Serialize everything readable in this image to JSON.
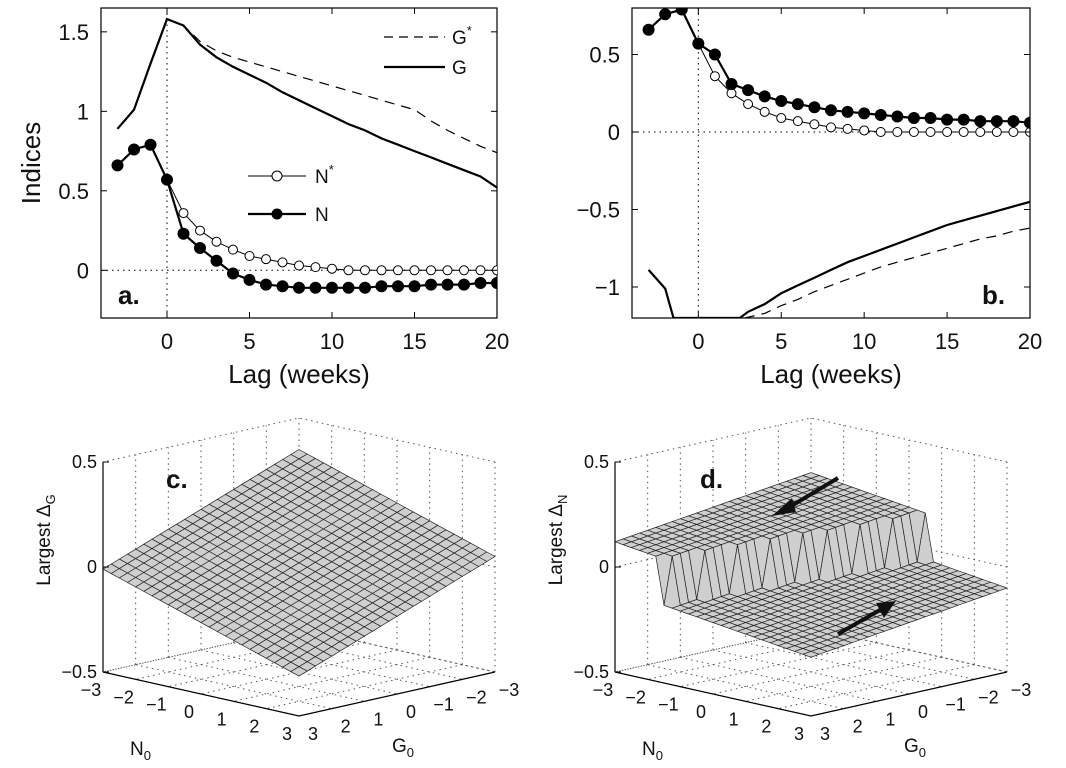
{
  "chart_data": [
    {
      "type": "line",
      "panel_label": "a.",
      "xlabel": "Lag (weeks)",
      "ylabel": "Indices",
      "xlim": [
        -4,
        20
      ],
      "ylim": [
        -0.3,
        1.65
      ],
      "x_ticks": [
        0,
        5,
        10,
        15,
        20
      ],
      "y_ticks": [
        0,
        0.5,
        1,
        1.5
      ],
      "y_tick_labels": [
        "0",
        "0.5",
        "1",
        "1.5"
      ],
      "reference_lines": {
        "x": 0,
        "y": 0,
        "style": "dotted"
      },
      "legend_g": {
        "placement": "top-right",
        "entries": [
          "G*",
          "G"
        ]
      },
      "legend_n": {
        "placement": "center",
        "entries": [
          "N*",
          "N"
        ]
      },
      "series": [
        {
          "name": "G*",
          "style": "dashed",
          "x": [
            -3,
            -2,
            -1,
            0,
            1,
            2,
            3,
            4,
            5,
            6,
            7,
            8,
            9,
            10,
            11,
            12,
            13,
            14,
            15,
            16,
            17,
            18,
            19,
            20
          ],
          "values": [
            0.89,
            1.01,
            1.3,
            1.58,
            1.54,
            1.44,
            1.38,
            1.34,
            1.31,
            1.28,
            1.25,
            1.22,
            1.19,
            1.16,
            1.13,
            1.1,
            1.07,
            1.04,
            1.01,
            0.94,
            0.88,
            0.83,
            0.78,
            0.74
          ]
        },
        {
          "name": "G",
          "style": "solid",
          "x": [
            -3,
            -2,
            -1,
            0,
            1,
            2,
            3,
            4,
            5,
            6,
            7,
            8,
            9,
            10,
            11,
            12,
            13,
            14,
            15,
            16,
            17,
            18,
            19,
            20
          ],
          "values": [
            0.89,
            1.01,
            1.3,
            1.58,
            1.54,
            1.42,
            1.34,
            1.28,
            1.23,
            1.18,
            1.12,
            1.07,
            1.02,
            0.97,
            0.92,
            0.88,
            0.83,
            0.79,
            0.75,
            0.71,
            0.67,
            0.63,
            0.59,
            0.52
          ]
        },
        {
          "name": "N*",
          "style": "open-circles",
          "x": [
            -3,
            -2,
            -1,
            0,
            1,
            2,
            3,
            4,
            5,
            6,
            7,
            8,
            9,
            10,
            11,
            12,
            13,
            14,
            15,
            16,
            17,
            18,
            19,
            20
          ],
          "values": [
            0.66,
            0.76,
            0.79,
            0.57,
            0.36,
            0.25,
            0.18,
            0.13,
            0.09,
            0.07,
            0.05,
            0.03,
            0.02,
            0.01,
            0.0,
            0.0,
            0.0,
            0.0,
            0.0,
            0.0,
            0.0,
            0.0,
            0.0,
            0.0
          ]
        },
        {
          "name": "N",
          "style": "filled-circles",
          "x": [
            -3,
            -2,
            -1,
            0,
            1,
            2,
            3,
            4,
            5,
            6,
            7,
            8,
            9,
            10,
            11,
            12,
            13,
            14,
            15,
            16,
            17,
            18,
            19,
            20
          ],
          "values": [
            0.66,
            0.76,
            0.79,
            0.57,
            0.23,
            0.14,
            0.06,
            -0.02,
            -0.06,
            -0.09,
            -0.1,
            -0.11,
            -0.11,
            -0.11,
            -0.11,
            -0.11,
            -0.1,
            -0.1,
            -0.1,
            -0.09,
            -0.09,
            -0.09,
            -0.08,
            -0.08
          ]
        }
      ]
    },
    {
      "type": "line",
      "panel_label": "b.",
      "xlabel": "Lag (weeks)",
      "ylabel": "",
      "xlim": [
        -4,
        20
      ],
      "ylim": [
        -1.2,
        0.8
      ],
      "x_ticks": [
        0,
        5,
        10,
        15,
        20
      ],
      "y_ticks": [
        -1,
        -0.5,
        0,
        0.5
      ],
      "y_tick_labels": [
        "−1",
        "−0.5",
        "0",
        "0.5"
      ],
      "reference_lines": {
        "x": 0,
        "y": 0,
        "style": "dotted"
      },
      "series": [
        {
          "style": "solid",
          "x": [
            -3,
            -2,
            -1.5,
            2.5,
            3,
            4,
            5,
            6,
            7,
            8,
            9,
            10,
            11,
            12,
            13,
            14,
            15,
            16,
            17,
            18,
            19,
            20
          ],
          "values": [
            -0.89,
            -1.01,
            -1.2,
            -1.2,
            -1.16,
            -1.11,
            -1.04,
            -0.99,
            -0.94,
            -0.89,
            -0.84,
            -0.8,
            -0.76,
            -0.72,
            -0.68,
            -0.64,
            -0.6,
            -0.57,
            -0.54,
            -0.51,
            -0.48,
            -0.45
          ]
        },
        {
          "style": "dashed",
          "x": [
            2.8,
            4,
            5,
            6,
            7,
            8,
            9,
            10,
            11,
            12,
            13,
            14,
            15,
            16,
            17,
            18,
            19,
            20
          ],
          "values": [
            -1.2,
            -1.17,
            -1.12,
            -1.08,
            -1.03,
            -0.99,
            -0.95,
            -0.91,
            -0.87,
            -0.84,
            -0.81,
            -0.78,
            -0.75,
            -0.72,
            -0.69,
            -0.67,
            -0.64,
            -0.62
          ]
        },
        {
          "style": "open-circles",
          "x": [
            -3,
            -2,
            -1,
            0,
            1,
            2,
            3,
            4,
            5,
            6,
            7,
            8,
            9,
            10,
            11,
            12,
            13,
            14,
            15,
            16,
            17,
            18,
            19,
            20
          ],
          "values": [
            0.66,
            0.76,
            0.79,
            0.57,
            0.36,
            0.25,
            0.18,
            0.13,
            0.09,
            0.07,
            0.05,
            0.03,
            0.02,
            0.01,
            0.0,
            0.0,
            0.0,
            0.0,
            0.0,
            0.0,
            0.0,
            0.0,
            0.0,
            0.0
          ]
        },
        {
          "style": "filled-circles",
          "x": [
            -3,
            -2,
            -1,
            0,
            1,
            2,
            3,
            4,
            5,
            6,
            7,
            8,
            9,
            10,
            11,
            12,
            13,
            14,
            15,
            16,
            17,
            18,
            19,
            20
          ],
          "values": [
            0.66,
            0.76,
            0.79,
            0.57,
            0.5,
            0.31,
            0.27,
            0.23,
            0.2,
            0.18,
            0.16,
            0.14,
            0.13,
            0.12,
            0.11,
            0.1,
            0.09,
            0.09,
            0.08,
            0.08,
            0.07,
            0.07,
            0.07,
            0.06
          ]
        }
      ]
    },
    {
      "type": "surface",
      "panel_label": "c.",
      "zlabel": "Largest Δ",
      "zlabel_sub": "G",
      "xlabel": "N",
      "xlabel_sub": "0",
      "ylabel": "G",
      "ylabel_sub": "0",
      "x_ticks": [
        3,
        2,
        1,
        0,
        -1,
        -2,
        -3
      ],
      "y_ticks": [
        3,
        2,
        1,
        0,
        -1,
        -2,
        -3
      ],
      "tick_labels": [
        "3",
        "2",
        "1",
        "0",
        "−1",
        "−2",
        "−3"
      ],
      "z_ticks": [
        -0.5,
        0,
        0.5
      ],
      "z_tick_labels": [
        "−0.5",
        "0",
        "0.5"
      ],
      "zlim": [
        -0.5,
        0.5
      ],
      "description_z_range": [
        -0.3,
        0.35
      ]
    },
    {
      "type": "surface",
      "panel_label": "d.",
      "zlabel": "Largest Δ",
      "zlabel_sub": "N",
      "xlabel": "N",
      "xlabel_sub": "0",
      "ylabel": "G",
      "ylabel_sub": "0",
      "x_ticks": [
        3,
        2,
        1,
        0,
        -1,
        -2,
        -3
      ],
      "y_ticks": [
        3,
        2,
        1,
        0,
        -1,
        -2,
        -3
      ],
      "tick_labels": [
        "3",
        "2",
        "1",
        "0",
        "−1",
        "−2",
        "−3"
      ],
      "z_ticks": [
        -0.5,
        0,
        0.5
      ],
      "z_tick_labels": [
        "−0.5",
        "0",
        "0.5"
      ],
      "zlim": [
        -0.5,
        0.5
      ]
    }
  ]
}
